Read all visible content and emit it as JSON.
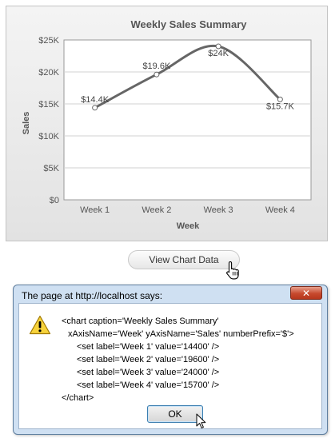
{
  "chart_data": {
    "type": "line",
    "title": "Weekly Sales Summary",
    "xlabel": "Week",
    "ylabel": "Sales",
    "categories": [
      "Week 1",
      "Week 2",
      "Week 3",
      "Week 4"
    ],
    "values": [
      14400,
      19600,
      24000,
      15700
    ],
    "data_labels": [
      "$14.4K",
      "$19.6K",
      "$24K",
      "$15.7K"
    ],
    "ylim": [
      0,
      25000
    ],
    "yticks": [
      0,
      5000,
      10000,
      15000,
      20000,
      25000
    ],
    "ytick_labels": [
      "$0",
      "$5K",
      "$10K",
      "$15K",
      "$20K",
      "$25K"
    ],
    "grid": true,
    "line_color": "#666666"
  },
  "view_button": {
    "label": "View Chart Data"
  },
  "dialog": {
    "title": "The page at http://localhost says:",
    "close_label": "✕",
    "icon": "warning-icon",
    "message_lines": [
      "<chart caption='Weekly Sales Summary'",
      " xAxisName='Week' yAxisName='Sales' numberPrefix='$'>",
      "<set label='Week 1' value='14400' />",
      "<set label='Week 2' value='19600' />",
      "<set label='Week 3' value='24000' />",
      "<set label='Week 4' value='15700' />",
      "</chart>"
    ],
    "ok_label": "OK"
  }
}
